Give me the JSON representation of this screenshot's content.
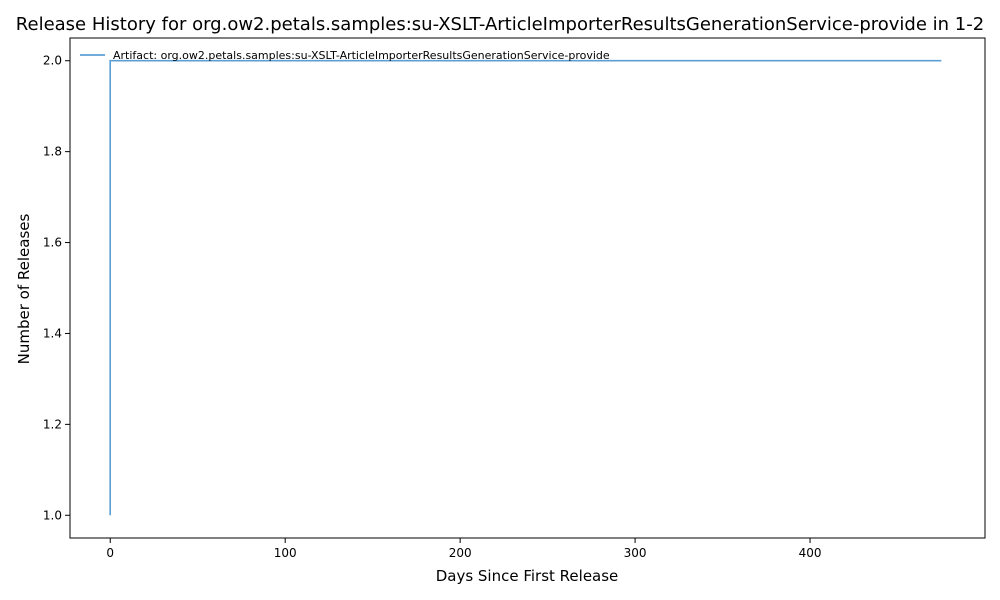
{
  "chart_data": {
    "type": "line",
    "title": "Release History for org.ow2.petals.samples:su-XSLT-ArticleImporterResultsGenerationService-provide in 1-2",
    "xlabel": "Days Since First Release",
    "ylabel": "Number of Releases",
    "xlim": [
      -23,
      500
    ],
    "ylim": [
      0.95,
      2.05
    ],
    "xticks": [
      0,
      100,
      200,
      300,
      400
    ],
    "yticks": [
      1.0,
      1.2,
      1.4,
      1.6,
      1.8,
      2.0
    ],
    "grid": false,
    "legend": "top-left",
    "series": [
      {
        "name": "Artifact: org.ow2.petals.samples:su-XSLT-ArticleImporterResultsGenerationService-provide",
        "color": "#5b9fd4",
        "step": "post",
        "x": [
          0,
          0,
          475
        ],
        "y": [
          1,
          2,
          2
        ]
      }
    ]
  }
}
